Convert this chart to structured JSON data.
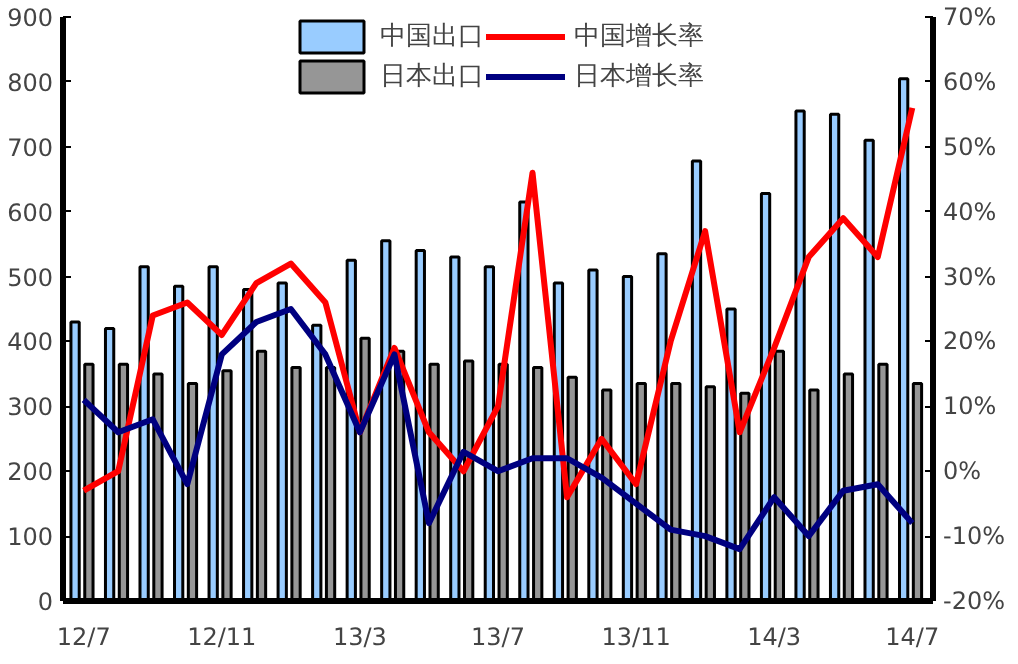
{
  "chart_data": {
    "type": "bar",
    "categories": [
      "12/7",
      null,
      null,
      null,
      "12/11",
      null,
      null,
      null,
      "13/3",
      null,
      null,
      null,
      "13/7",
      null,
      null,
      null,
      "13/11",
      null,
      null,
      null,
      "14/3",
      null,
      null,
      null,
      "14/7"
    ],
    "series": [
      {
        "name": "中国出口",
        "color": "#99ccff",
        "values": [
          430,
          420,
          515,
          485,
          515,
          480,
          490,
          425,
          525,
          555,
          540,
          530,
          515,
          615,
          490,
          510,
          500,
          535,
          678,
          450,
          628,
          755,
          750,
          710,
          805
        ]
      },
      {
        "name": "日本出口",
        "color": "#969696",
        "values": [
          365,
          365,
          350,
          335,
          355,
          385,
          360,
          360,
          405,
          385,
          365,
          370,
          365,
          360,
          345,
          325,
          335,
          335,
          330,
          320,
          385,
          325,
          350,
          365,
          335
        ]
      },
      {
        "name": "中国增长率",
        "type": "line",
        "axis": "y2",
        "color": "#ff0000",
        "values": [
          -3,
          0,
          24,
          26,
          21,
          29,
          32,
          26,
          6,
          19,
          6,
          0,
          10,
          46,
          -4,
          5,
          -2,
          20,
          37,
          6,
          19,
          33,
          39,
          33,
          56
        ]
      },
      {
        "name": "日本增长率",
        "type": "line",
        "axis": "y2",
        "color": "#000080",
        "values": [
          11,
          6,
          8,
          -2,
          18,
          23,
          25,
          18,
          6,
          18,
          -8,
          3,
          0,
          2,
          2,
          -1,
          -5,
          -9,
          -10,
          -12,
          -4,
          -10,
          -3,
          -2,
          -8
        ]
      }
    ],
    "ylim": [
      0,
      900
    ],
    "yticks": [
      0,
      100,
      200,
      300,
      400,
      500,
      600,
      700,
      800,
      900
    ],
    "y2lim": [
      -20,
      70
    ],
    "y2ticks": [
      {
        "value": -20,
        "label": "-20%"
      },
      {
        "value": -10,
        "label": "-10%"
      },
      {
        "value": 0,
        "label": "0%"
      },
      {
        "value": 10,
        "label": "10%"
      },
      {
        "value": 20,
        "label": "20%"
      },
      {
        "value": 30,
        "label": "30%"
      },
      {
        "value": 40,
        "label": "40%"
      },
      {
        "value": 50,
        "label": "50%"
      },
      {
        "value": 60,
        "label": "60%"
      },
      {
        "value": 70,
        "label": "70%"
      }
    ],
    "legend": "top",
    "grid": false,
    "line_style": "solid"
  }
}
